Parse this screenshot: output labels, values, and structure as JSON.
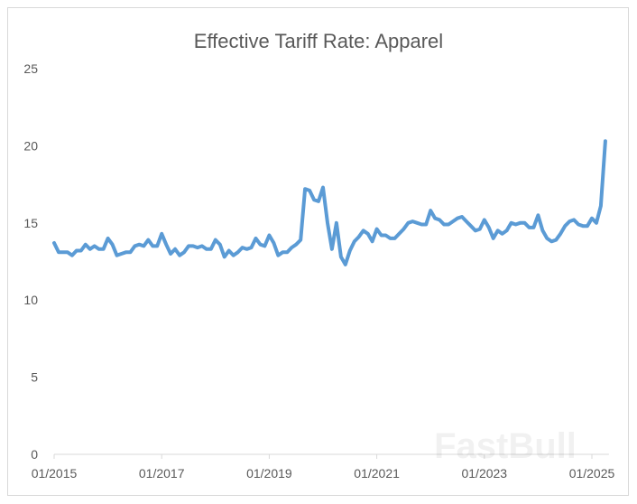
{
  "chart_data": {
    "type": "line",
    "title": "Effective Tariff Rate: Apparel",
    "xlabel": "",
    "ylabel": "",
    "ylim": [
      0,
      25
    ],
    "yticks": [
      "0",
      "5",
      "10",
      "15",
      "20",
      "25"
    ],
    "xticks": [
      "01/2015",
      "01/2017",
      "01/2019",
      "01/2021",
      "01/2023",
      "01/2025"
    ],
    "grid": false,
    "x_start": "01/2015",
    "x_end": "04/2025",
    "x_frequency": "monthly",
    "series": [
      {
        "color": "#5b9bd5",
        "values": [
          13.7,
          13.1,
          13.1,
          13.1,
          12.9,
          13.2,
          13.2,
          13.6,
          13.3,
          13.5,
          13.3,
          13.3,
          14.0,
          13.6,
          12.9,
          13.0,
          13.1,
          13.1,
          13.5,
          13.6,
          13.5,
          13.9,
          13.5,
          13.5,
          14.3,
          13.6,
          13.0,
          13.3,
          12.9,
          13.1,
          13.5,
          13.5,
          13.4,
          13.5,
          13.3,
          13.3,
          13.9,
          13.6,
          12.8,
          13.2,
          12.9,
          13.1,
          13.4,
          13.3,
          13.4,
          14.0,
          13.6,
          13.5,
          14.2,
          13.7,
          12.9,
          13.1,
          13.1,
          13.4,
          13.6,
          13.9,
          17.2,
          17.1,
          16.5,
          16.4,
          17.3,
          15.0,
          13.3,
          15.0,
          12.8,
          12.3,
          13.2,
          13.8,
          14.1,
          14.5,
          14.3,
          13.8,
          14.6,
          14.2,
          14.2,
          14.0,
          14.0,
          14.3,
          14.6,
          15.0,
          15.1,
          15.0,
          14.9,
          14.9,
          15.8,
          15.3,
          15.2,
          14.9,
          14.9,
          15.1,
          15.3,
          15.4,
          15.1,
          14.8,
          14.5,
          14.6,
          15.2,
          14.7,
          14.0,
          14.5,
          14.3,
          14.5,
          15.0,
          14.9,
          15.0,
          15.0,
          14.7,
          14.7,
          15.5,
          14.5,
          14.0,
          13.8,
          13.9,
          14.3,
          14.8,
          15.1,
          15.2,
          14.9,
          14.8,
          14.8,
          15.3,
          15.0,
          16.1,
          20.3
        ]
      }
    ],
    "legend": "none"
  },
  "watermark": "FastBull"
}
